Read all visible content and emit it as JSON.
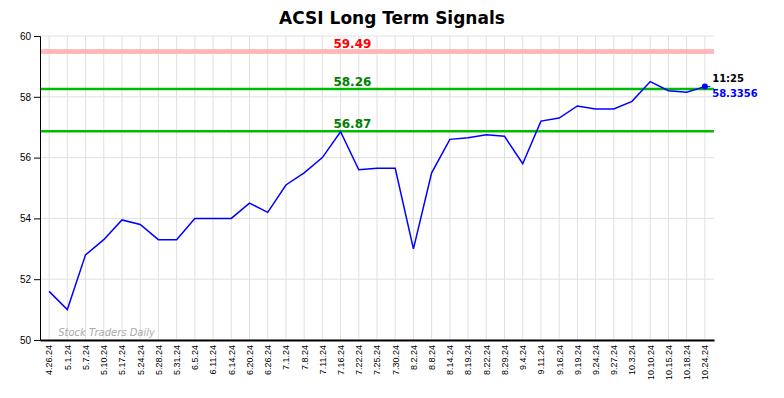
{
  "chart_data": {
    "type": "line",
    "title": "ACSI Long Term Signals",
    "categories": [
      "4.26.24",
      "5.1.24",
      "5.7.24",
      "5.10.24",
      "5.17.24",
      "5.24.24",
      "5.28.24",
      "5.31.24",
      "6.5.24",
      "6.11.24",
      "6.14.24",
      "6.20.24",
      "6.26.24",
      "7.1.24",
      "7.8.24",
      "7.11.24",
      "7.16.24",
      "7.22.24",
      "7.25.24",
      "7.30.24",
      "8.2.24",
      "8.8.24",
      "8.14.24",
      "8.19.24",
      "8.22.24",
      "8.29.24",
      "9.4.24",
      "9.11.24",
      "9.16.24",
      "9.19.24",
      "9.24.24",
      "9.27.24",
      "10.3.24",
      "10.10.24",
      "10.15.24",
      "10.18.24",
      "10.24.24"
    ],
    "values": [
      51.6,
      51.0,
      52.8,
      53.3,
      53.95,
      53.8,
      53.3,
      53.3,
      54.0,
      54.0,
      54.0,
      54.5,
      54.2,
      55.1,
      55.5,
      56.0,
      56.85,
      55.6,
      55.65,
      55.65,
      53.0,
      55.5,
      56.6,
      56.65,
      56.75,
      56.7,
      55.8,
      57.2,
      57.3,
      57.7,
      57.6,
      57.6,
      57.85,
      58.5,
      58.2,
      58.15,
      58.3356
    ],
    "color": "blue",
    "ylim": [
      50,
      60
    ],
    "yticks": [
      50,
      52,
      54,
      56,
      58,
      60
    ],
    "grid": true,
    "reference_lines": [
      {
        "type": "band",
        "value": 59.49,
        "color": "#ffb0b0",
        "label_color": "red"
      },
      {
        "type": "line",
        "value": 58.26,
        "color": "#00bb00",
        "label_color": "green"
      },
      {
        "type": "line",
        "value": 56.87,
        "color": "#00bb00",
        "label_color": "green"
      }
    ],
    "end_label": "11:25",
    "watermark": "Stock Traders Daily"
  }
}
